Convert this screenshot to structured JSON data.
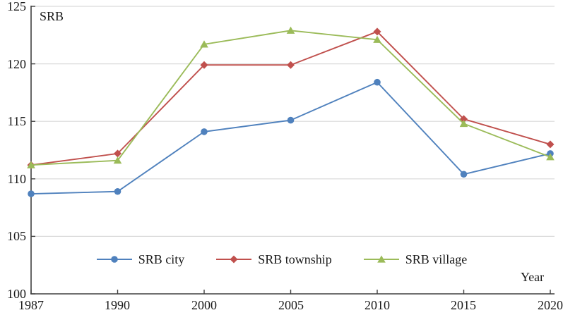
{
  "chart_data": {
    "type": "line",
    "title": "",
    "ylabel": "SRB",
    "xlabel": "Year",
    "categories": [
      "1987",
      "1990",
      "2000",
      "2005",
      "2010",
      "2015",
      "2020"
    ],
    "series": [
      {
        "name": "SRB city",
        "marker": "circle",
        "color": "#4F81BD",
        "values": [
          108.7,
          108.9,
          114.1,
          115.1,
          118.4,
          110.4,
          112.2
        ]
      },
      {
        "name": "SRB township",
        "marker": "diamond",
        "color": "#C0504D",
        "values": [
          111.2,
          112.2,
          119.9,
          119.9,
          122.8,
          115.2,
          113.0
        ]
      },
      {
        "name": "SRB village",
        "marker": "triangle",
        "color": "#9BBB59",
        "values": [
          111.2,
          111.6,
          121.7,
          122.9,
          122.1,
          114.8,
          111.9
        ]
      }
    ],
    "ylim": [
      100,
      125
    ],
    "y_ticks": [
      100,
      105,
      110,
      115,
      120,
      125
    ],
    "grid": true,
    "grid_color": "#D9D9D9",
    "axis_color": "#404040",
    "legend_position": "bottom-center"
  }
}
